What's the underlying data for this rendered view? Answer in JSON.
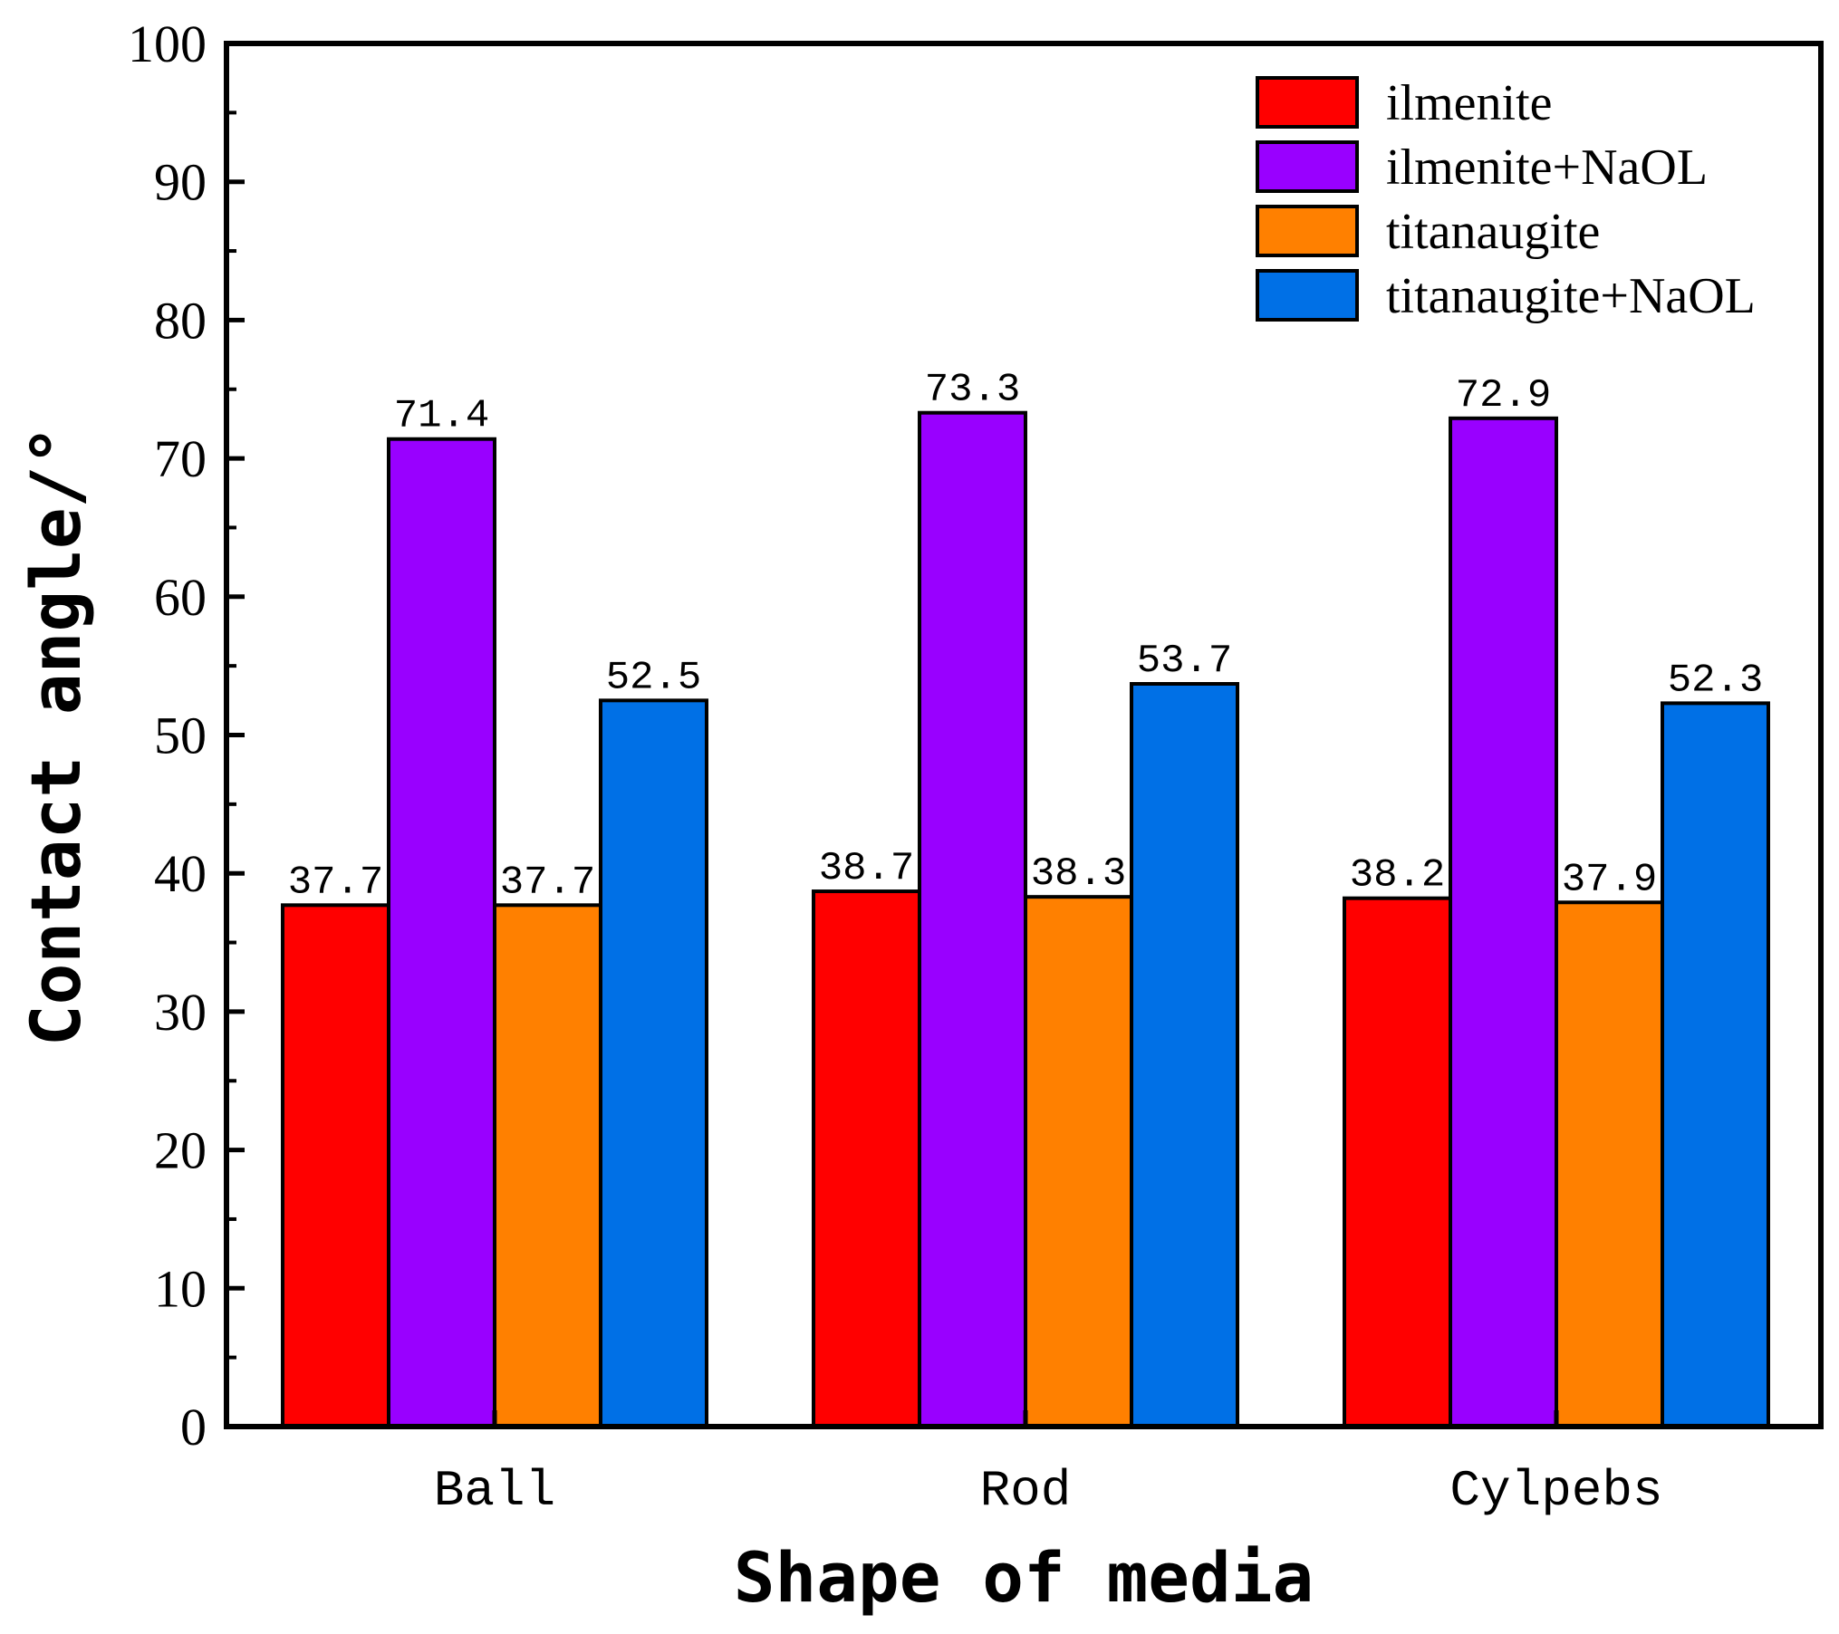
{
  "chart_data": {
    "type": "bar",
    "title": "",
    "xlabel": "Shape of media",
    "ylabel": "Contact angle/°",
    "ylim": [
      0,
      100
    ],
    "yticks": [
      "0",
      "10",
      "20",
      "30",
      "40",
      "50",
      "60",
      "70",
      "80",
      "90",
      "100"
    ],
    "categories": [
      "Ball",
      "Rod",
      "Cylpebs"
    ],
    "series": [
      {
        "name": "ilmenite",
        "color": "#ff0000",
        "values": [
          37.7,
          38.7,
          38.2
        ],
        "labels": [
          "37.7",
          "38.7",
          "38.2"
        ]
      },
      {
        "name": "ilmenite+NaOL",
        "color": "#9900ff",
        "values": [
          71.4,
          73.3,
          72.9
        ],
        "labels": [
          "71.4",
          "73.3",
          "72.9"
        ]
      },
      {
        "name": "titanaugite",
        "color": "#ff8000",
        "values": [
          37.7,
          38.3,
          37.9
        ],
        "labels": [
          "37.7",
          "38.3",
          "37.9"
        ]
      },
      {
        "name": "titanaugite+NaOL",
        "color": "#0070e6",
        "values": [
          52.5,
          53.7,
          52.3
        ],
        "labels": [
          "52.5",
          "53.7",
          "52.3"
        ]
      }
    ],
    "legend_position": "top-right",
    "grid": false
  }
}
